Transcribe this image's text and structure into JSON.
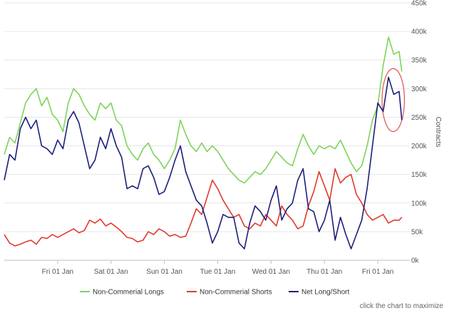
{
  "chart_data": {
    "type": "line",
    "title": "",
    "ylabel": "Contracts",
    "ylim": [
      0,
      450000
    ],
    "y_ticks": [
      0,
      50000,
      100000,
      150000,
      200000,
      250000,
      300000,
      350000,
      400000,
      450000
    ],
    "y_tick_labels": [
      "0k",
      "50k",
      "100k",
      "150k",
      "200k",
      "250k",
      "300k",
      "350k",
      "400k",
      "450k"
    ],
    "x_ticks": [
      1,
      2,
      3,
      4,
      5,
      6,
      7
    ],
    "x_tick_labels": [
      "Fri 01 Jan",
      "Sat 01 Jan",
      "Sun 01 Jan",
      "Tue 01 Jan",
      "Wed 01 Jan",
      "Thu 01 Jan",
      "Fri 01 Jan"
    ],
    "xlim": [
      0,
      7.6
    ],
    "grid": true,
    "legend_position": "bottom",
    "annotation": {
      "type": "ellipse",
      "color": "#e05050",
      "x_range": [
        7.08,
        7.5
      ],
      "y_range": [
        225000,
        335000
      ]
    },
    "series": [
      {
        "name": "Non-Commerial Longs",
        "color": "#7ed35a",
        "points": [
          [
            0.0,
            185000
          ],
          [
            0.1,
            215000
          ],
          [
            0.2,
            205000
          ],
          [
            0.3,
            240000
          ],
          [
            0.4,
            275000
          ],
          [
            0.5,
            290000
          ],
          [
            0.6,
            300000
          ],
          [
            0.7,
            270000
          ],
          [
            0.8,
            285000
          ],
          [
            0.9,
            255000
          ],
          [
            1.0,
            245000
          ],
          [
            1.1,
            225000
          ],
          [
            1.2,
            275000
          ],
          [
            1.3,
            300000
          ],
          [
            1.4,
            290000
          ],
          [
            1.5,
            270000
          ],
          [
            1.6,
            255000
          ],
          [
            1.7,
            245000
          ],
          [
            1.8,
            275000
          ],
          [
            1.9,
            265000
          ],
          [
            2.0,
            275000
          ],
          [
            2.1,
            245000
          ],
          [
            2.2,
            235000
          ],
          [
            2.3,
            200000
          ],
          [
            2.4,
            185000
          ],
          [
            2.5,
            175000
          ],
          [
            2.6,
            195000
          ],
          [
            2.7,
            205000
          ],
          [
            2.8,
            185000
          ],
          [
            2.9,
            175000
          ],
          [
            3.0,
            160000
          ],
          [
            3.1,
            175000
          ],
          [
            3.2,
            195000
          ],
          [
            3.3,
            245000
          ],
          [
            3.4,
            220000
          ],
          [
            3.5,
            200000
          ],
          [
            3.6,
            190000
          ],
          [
            3.7,
            205000
          ],
          [
            3.8,
            190000
          ],
          [
            3.9,
            200000
          ],
          [
            4.0,
            190000
          ],
          [
            4.1,
            175000
          ],
          [
            4.2,
            160000
          ],
          [
            4.3,
            150000
          ],
          [
            4.4,
            140000
          ],
          [
            4.5,
            135000
          ],
          [
            4.6,
            145000
          ],
          [
            4.7,
            155000
          ],
          [
            4.8,
            150000
          ],
          [
            4.9,
            160000
          ],
          [
            5.0,
            175000
          ],
          [
            5.1,
            190000
          ],
          [
            5.2,
            180000
          ],
          [
            5.3,
            170000
          ],
          [
            5.4,
            165000
          ],
          [
            5.5,
            195000
          ],
          [
            5.6,
            220000
          ],
          [
            5.7,
            200000
          ],
          [
            5.8,
            185000
          ],
          [
            5.9,
            200000
          ],
          [
            6.0,
            195000
          ],
          [
            6.1,
            200000
          ],
          [
            6.2,
            195000
          ],
          [
            6.3,
            210000
          ],
          [
            6.4,
            190000
          ],
          [
            6.5,
            170000
          ],
          [
            6.6,
            155000
          ],
          [
            6.7,
            165000
          ],
          [
            6.8,
            200000
          ],
          [
            6.9,
            245000
          ],
          [
            7.0,
            270000
          ],
          [
            7.1,
            340000
          ],
          [
            7.2,
            390000
          ],
          [
            7.3,
            360000
          ],
          [
            7.4,
            365000
          ],
          [
            7.45,
            330000
          ]
        ]
      },
      {
        "name": "Non-Commerial Shorts",
        "color": "#e03a2c",
        "points": [
          [
            0.0,
            45000
          ],
          [
            0.1,
            30000
          ],
          [
            0.2,
            25000
          ],
          [
            0.3,
            28000
          ],
          [
            0.4,
            32000
          ],
          [
            0.5,
            35000
          ],
          [
            0.6,
            28000
          ],
          [
            0.7,
            40000
          ],
          [
            0.8,
            38000
          ],
          [
            0.9,
            45000
          ],
          [
            1.0,
            40000
          ],
          [
            1.1,
            45000
          ],
          [
            1.2,
            50000
          ],
          [
            1.3,
            55000
          ],
          [
            1.4,
            48000
          ],
          [
            1.5,
            52000
          ],
          [
            1.6,
            70000
          ],
          [
            1.7,
            65000
          ],
          [
            1.8,
            72000
          ],
          [
            1.9,
            60000
          ],
          [
            2.0,
            65000
          ],
          [
            2.1,
            58000
          ],
          [
            2.2,
            50000
          ],
          [
            2.3,
            40000
          ],
          [
            2.4,
            38000
          ],
          [
            2.5,
            32000
          ],
          [
            2.6,
            35000
          ],
          [
            2.7,
            50000
          ],
          [
            2.8,
            45000
          ],
          [
            2.9,
            55000
          ],
          [
            3.0,
            50000
          ],
          [
            3.1,
            42000
          ],
          [
            3.2,
            45000
          ],
          [
            3.3,
            40000
          ],
          [
            3.4,
            42000
          ],
          [
            3.5,
            65000
          ],
          [
            3.6,
            90000
          ],
          [
            3.7,
            80000
          ],
          [
            3.8,
            110000
          ],
          [
            3.9,
            140000
          ],
          [
            4.0,
            125000
          ],
          [
            4.1,
            105000
          ],
          [
            4.2,
            90000
          ],
          [
            4.3,
            75000
          ],
          [
            4.4,
            80000
          ],
          [
            4.5,
            60000
          ],
          [
            4.6,
            55000
          ],
          [
            4.7,
            65000
          ],
          [
            4.8,
            60000
          ],
          [
            4.9,
            80000
          ],
          [
            5.0,
            70000
          ],
          [
            5.1,
            60000
          ],
          [
            5.2,
            95000
          ],
          [
            5.3,
            80000
          ],
          [
            5.4,
            70000
          ],
          [
            5.5,
            55000
          ],
          [
            5.6,
            60000
          ],
          [
            5.7,
            95000
          ],
          [
            5.8,
            120000
          ],
          [
            5.9,
            155000
          ],
          [
            6.0,
            130000
          ],
          [
            6.1,
            105000
          ],
          [
            6.2,
            160000
          ],
          [
            6.3,
            135000
          ],
          [
            6.4,
            145000
          ],
          [
            6.5,
            150000
          ],
          [
            6.6,
            115000
          ],
          [
            6.7,
            100000
          ],
          [
            6.8,
            80000
          ],
          [
            6.9,
            70000
          ],
          [
            7.0,
            75000
          ],
          [
            7.1,
            80000
          ],
          [
            7.2,
            65000
          ],
          [
            7.3,
            70000
          ],
          [
            7.4,
            70000
          ],
          [
            7.45,
            75000
          ]
        ]
      },
      {
        "name": "Net Long/Short",
        "color": "#1c1f7a",
        "points": [
          [
            0.0,
            140000
          ],
          [
            0.1,
            185000
          ],
          [
            0.2,
            175000
          ],
          [
            0.3,
            230000
          ],
          [
            0.4,
            250000
          ],
          [
            0.5,
            230000
          ],
          [
            0.6,
            245000
          ],
          [
            0.7,
            200000
          ],
          [
            0.8,
            195000
          ],
          [
            0.9,
            185000
          ],
          [
            1.0,
            210000
          ],
          [
            1.1,
            195000
          ],
          [
            1.2,
            245000
          ],
          [
            1.3,
            260000
          ],
          [
            1.4,
            240000
          ],
          [
            1.5,
            200000
          ],
          [
            1.6,
            160000
          ],
          [
            1.7,
            175000
          ],
          [
            1.8,
            215000
          ],
          [
            1.9,
            195000
          ],
          [
            2.0,
            230000
          ],
          [
            2.1,
            200000
          ],
          [
            2.2,
            180000
          ],
          [
            2.3,
            125000
          ],
          [
            2.4,
            130000
          ],
          [
            2.5,
            125000
          ],
          [
            2.6,
            160000
          ],
          [
            2.7,
            165000
          ],
          [
            2.8,
            145000
          ],
          [
            2.9,
            115000
          ],
          [
            3.0,
            120000
          ],
          [
            3.1,
            145000
          ],
          [
            3.2,
            175000
          ],
          [
            3.3,
            200000
          ],
          [
            3.4,
            155000
          ],
          [
            3.5,
            130000
          ],
          [
            3.6,
            105000
          ],
          [
            3.7,
            95000
          ],
          [
            3.8,
            65000
          ],
          [
            3.9,
            30000
          ],
          [
            4.0,
            50000
          ],
          [
            4.1,
            80000
          ],
          [
            4.2,
            75000
          ],
          [
            4.3,
            75000
          ],
          [
            4.4,
            30000
          ],
          [
            4.5,
            20000
          ],
          [
            4.6,
            65000
          ],
          [
            4.7,
            95000
          ],
          [
            4.8,
            85000
          ],
          [
            4.9,
            70000
          ],
          [
            5.0,
            105000
          ],
          [
            5.1,
            130000
          ],
          [
            5.2,
            70000
          ],
          [
            5.3,
            90000
          ],
          [
            5.4,
            100000
          ],
          [
            5.5,
            140000
          ],
          [
            5.6,
            160000
          ],
          [
            5.7,
            90000
          ],
          [
            5.8,
            85000
          ],
          [
            5.9,
            50000
          ],
          [
            6.0,
            70000
          ],
          [
            6.1,
            105000
          ],
          [
            6.2,
            35000
          ],
          [
            6.3,
            75000
          ],
          [
            6.4,
            45000
          ],
          [
            6.5,
            20000
          ],
          [
            6.6,
            45000
          ],
          [
            6.7,
            70000
          ],
          [
            6.8,
            125000
          ],
          [
            6.9,
            200000
          ],
          [
            7.0,
            275000
          ],
          [
            7.1,
            260000
          ],
          [
            7.2,
            320000
          ],
          [
            7.3,
            290000
          ],
          [
            7.4,
            295000
          ],
          [
            7.45,
            245000
          ]
        ]
      }
    ]
  },
  "footer": {
    "caption": "click the chart to maximize"
  }
}
